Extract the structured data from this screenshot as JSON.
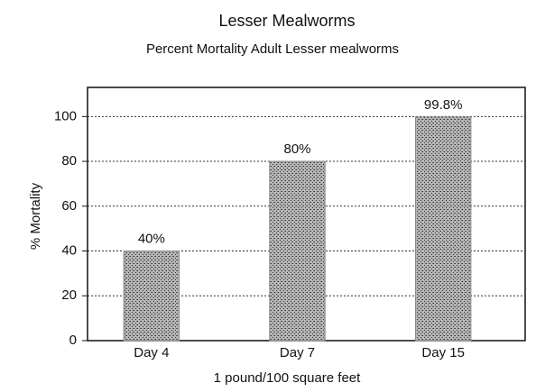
{
  "chart_data": {
    "type": "bar",
    "title": "Lesser Mealworms",
    "subtitle": "Percent Mortality Adult Lesser mealworms",
    "x_label": "1 pound/100 square feet",
    "y_label": "% Mortality",
    "categories": [
      "Day 4",
      "Day 7",
      "Day 15"
    ],
    "values": [
      40,
      80,
      99.8
    ],
    "value_labels": [
      "40%",
      "80%",
      "99.8%"
    ],
    "color": "#8a8a8a",
    "ylim": [
      0,
      113
    ],
    "yticks": [
      0,
      20,
      40,
      60,
      80,
      100
    ],
    "grid": true
  }
}
